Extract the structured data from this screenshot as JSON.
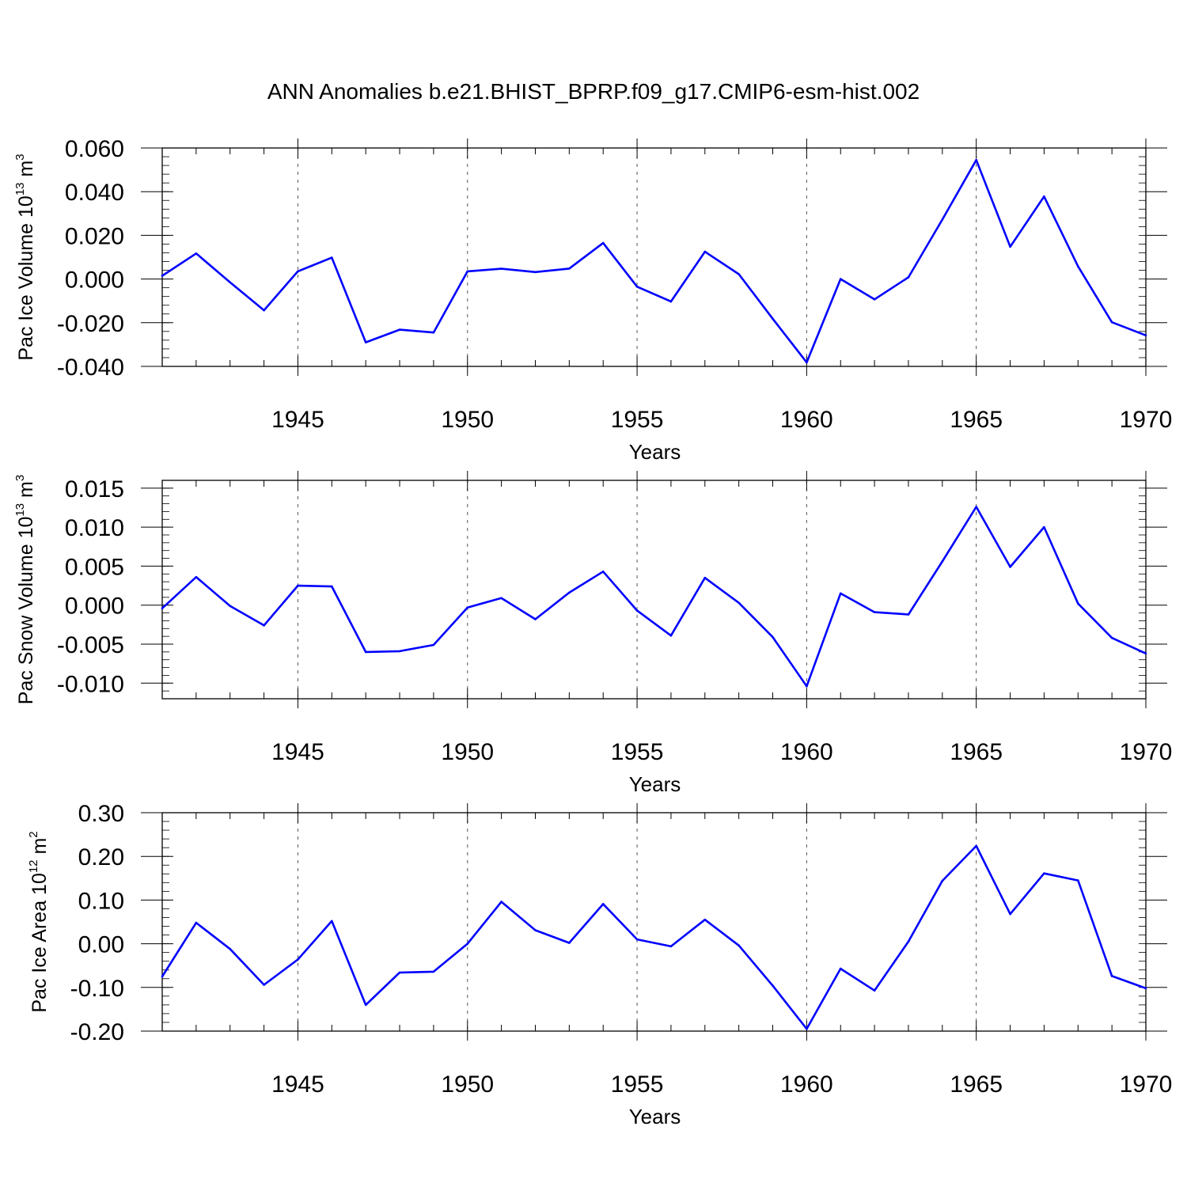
{
  "title": "ANN Anomalies b.e21.BHIST_BPRP.f09_g17.CMIP6-esm-hist.002",
  "line_color": "#0000ff",
  "chart_data": [
    {
      "type": "line",
      "ylabel_main": "Pac Ice Volume 10",
      "ylabel_exp1": "13",
      "ylabel_mid": " m",
      "ylabel_exp2": "3",
      "xlabel": "Years",
      "xlim": [
        1941,
        1970
      ],
      "ylim": [
        -0.04,
        0.06
      ],
      "yticks": [
        -0.04,
        -0.02,
        0.0,
        0.02,
        0.04,
        0.06
      ],
      "yticklabels": [
        "-0.040",
        "-0.020",
        "0.000",
        "0.020",
        "0.040",
        "0.060"
      ],
      "xticks": [
        1945,
        1950,
        1955,
        1960,
        1965,
        1970
      ],
      "xticklabels": [
        "1945",
        "1950",
        "1955",
        "1960",
        "1965",
        "1970"
      ],
      "x": [
        1941,
        1942,
        1943,
        1944,
        1945,
        1946,
        1947,
        1948,
        1949,
        1950,
        1951,
        1952,
        1953,
        1954,
        1955,
        1956,
        1957,
        1958,
        1959,
        1960,
        1961,
        1962,
        1963,
        1964,
        1965,
        1966,
        1967,
        1968,
        1969,
        1970
      ],
      "series": [
        {
          "name": "Pac Ice Volume",
          "values": [
            0.0015,
            0.0117,
            -0.0015,
            -0.0143,
            0.0035,
            0.0098,
            -0.029,
            -0.0232,
            -0.0245,
            0.0035,
            0.0047,
            0.0032,
            0.0048,
            0.0165,
            -0.0035,
            -0.0103,
            0.0125,
            0.0022,
            -0.0182,
            -0.0382,
            0.0,
            -0.0093,
            0.0008,
            0.0272,
            0.0545,
            0.0148,
            0.0378,
            0.0058,
            -0.0198,
            -0.0258
          ]
        }
      ]
    },
    {
      "type": "line",
      "ylabel_main": "Pac Snow Volume 10",
      "ylabel_exp1": "13",
      "ylabel_mid": " m",
      "ylabel_exp2": "3",
      "xlabel": "Years",
      "xlim": [
        1941,
        1970
      ],
      "ylim": [
        -0.012,
        0.016
      ],
      "yticks": [
        -0.01,
        -0.005,
        0.0,
        0.005,
        0.01,
        0.015
      ],
      "yticklabels": [
        "-0.010",
        "-0.005",
        "0.000",
        "0.005",
        "0.010",
        "0.015"
      ],
      "xticks": [
        1945,
        1950,
        1955,
        1960,
        1965,
        1970
      ],
      "xticklabels": [
        "1945",
        "1950",
        "1955",
        "1960",
        "1965",
        "1970"
      ],
      "x": [
        1941,
        1942,
        1943,
        1944,
        1945,
        1946,
        1947,
        1948,
        1949,
        1950,
        1951,
        1952,
        1953,
        1954,
        1955,
        1956,
        1957,
        1958,
        1959,
        1960,
        1961,
        1962,
        1963,
        1964,
        1965,
        1966,
        1967,
        1968,
        1969,
        1970
      ],
      "series": [
        {
          "name": "Pac Snow Volume",
          "values": [
            -0.0004,
            0.0036,
            -0.0001,
            -0.0026,
            0.0025,
            0.0024,
            -0.006,
            -0.0059,
            -0.0051,
            -0.0003,
            0.0009,
            -0.0018,
            0.0016,
            0.0043,
            -0.0007,
            -0.0039,
            0.0035,
            0.0003,
            -0.0041,
            -0.0104,
            0.0015,
            -0.0009,
            -0.0012,
            0.0056,
            0.0126,
            0.0049,
            0.01,
            0.0002,
            -0.0042,
            -0.0062
          ]
        }
      ]
    },
    {
      "type": "line",
      "ylabel_main": "Pac Ice Area 10",
      "ylabel_exp1": "12",
      "ylabel_mid": " m",
      "ylabel_exp2": "2",
      "xlabel": "Years",
      "xlim": [
        1941,
        1970
      ],
      "ylim": [
        -0.2,
        0.3
      ],
      "yticks": [
        -0.2,
        -0.1,
        0.0,
        0.1,
        0.2,
        0.3
      ],
      "yticklabels": [
        "-0.20",
        "-0.10",
        "0.00",
        "0.10",
        "0.20",
        "0.30"
      ],
      "xticks": [
        1945,
        1950,
        1955,
        1960,
        1965,
        1970
      ],
      "xticklabels": [
        "1945",
        "1950",
        "1955",
        "1960",
        "1965",
        "1970"
      ],
      "x": [
        1941,
        1942,
        1943,
        1944,
        1945,
        1946,
        1947,
        1948,
        1949,
        1950,
        1951,
        1952,
        1953,
        1954,
        1955,
        1956,
        1957,
        1958,
        1959,
        1960,
        1961,
        1962,
        1963,
        1964,
        1965,
        1966,
        1967,
        1968,
        1969,
        1970
      ],
      "series": [
        {
          "name": "Pac Ice Area",
          "values": [
            -0.075,
            0.048,
            -0.012,
            -0.094,
            -0.036,
            0.052,
            -0.14,
            -0.066,
            -0.064,
            0.0,
            0.096,
            0.031,
            0.002,
            0.091,
            0.01,
            -0.006,
            0.055,
            -0.004,
            -0.096,
            -0.195,
            -0.057,
            -0.107,
            0.005,
            0.144,
            0.224,
            0.068,
            0.161,
            0.145,
            -0.074,
            -0.102
          ]
        }
      ]
    }
  ]
}
